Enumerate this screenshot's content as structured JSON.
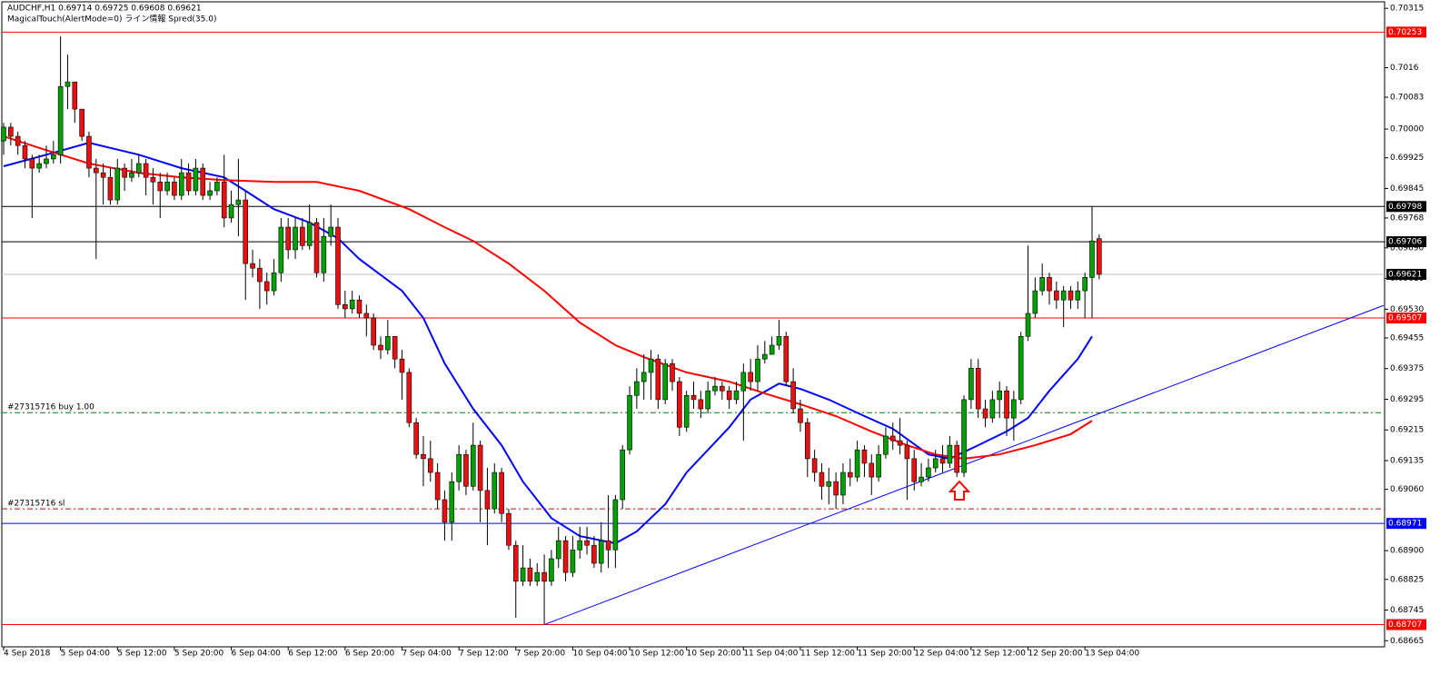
{
  "chart_data": {
    "type": "candlestick",
    "header": "AUDCHF,H1  0.69714 0.69725 0.69608 0.69621",
    "indicator": "MagicalTouch(AlertMode=0) ライン情報 Spred(35.0)",
    "ylim": [
      0.68649,
      0.70332
    ],
    "yticks": [
      0.70315,
      0.7016,
      0.70083,
      {
        "value": 0.7,
        "label": "0.70000"
      },
      0.69925,
      0.69845,
      0.69768,
      {
        "value": 0.6969,
        "label": "0.69690"
      },
      {
        "value": 0.6961,
        "label": "0.69610"
      },
      {
        "value": 0.6953,
        "label": "0.69530"
      },
      0.69455,
      0.69375,
      0.69295,
      0.69215,
      0.69135,
      {
        "value": 0.6906,
        "label": "0.69060"
      },
      {
        "value": 0.689,
        "label": "0.68900"
      },
      0.68825,
      0.68745,
      0.68665
    ],
    "xticks": [
      {
        "value": 0,
        "label": "4 Sep 2018"
      },
      {
        "value": 8,
        "label": "5 Sep 04:00"
      },
      {
        "value": 16,
        "label": "5 Sep 12:00"
      },
      {
        "value": 24,
        "label": "5 Sep 20:00"
      },
      {
        "value": 32,
        "label": "6 Sep 04:00"
      },
      {
        "value": 40,
        "label": "6 Sep 12:00"
      },
      {
        "value": 48,
        "label": "6 Sep 20:00"
      },
      {
        "value": 56,
        "label": "7 Sep 04:00"
      },
      {
        "value": 64,
        "label": "7 Sep 12:00"
      },
      {
        "value": 72,
        "label": "7 Sep 20:00"
      },
      {
        "value": 80,
        "label": "10 Sep 04:00"
      },
      {
        "value": 88,
        "label": "10 Sep 12:00"
      },
      {
        "value": 96,
        "label": "10 Sep 20:00"
      },
      {
        "value": 104,
        "label": "11 Sep 04:00"
      },
      {
        "value": 112,
        "label": "11 Sep 12:00"
      },
      {
        "value": 120,
        "label": "11 Sep 20:00"
      },
      {
        "value": 128,
        "label": "12 Sep 04:00"
      },
      {
        "value": 136,
        "label": "12 Sep 12:00"
      },
      {
        "value": 144,
        "label": "12 Sep 20:00"
      },
      {
        "value": 152,
        "label": "13 Sep 04:00"
      }
    ],
    "up_color": "#00a000",
    "down_color": "#e81010",
    "candles": [
      [
        0.69969,
        0.70016,
        0.69933,
        0.70005
      ],
      [
        0.70005,
        0.70016,
        0.69957,
        0.69981
      ],
      [
        0.69981,
        0.69993,
        0.69933,
        0.69957
      ],
      [
        0.69957,
        0.69969,
        0.69898,
        0.69922
      ],
      [
        0.69922,
        0.69933,
        0.69768,
        0.69898
      ],
      [
        0.69898,
        0.69933,
        0.69886,
        0.6991
      ],
      [
        0.6991,
        0.69957,
        0.69898,
        0.69922
      ],
      [
        0.69922,
        0.69969,
        0.6991,
        0.69933
      ],
      [
        0.69933,
        0.70242,
        0.6991,
        0.70111
      ],
      [
        0.70111,
        0.70194,
        0.70052,
        0.70123
      ],
      [
        0.70123,
        0.70123,
        0.70016,
        0.70052
      ],
      [
        0.70052,
        0.70052,
        0.69969,
        0.69981
      ],
      [
        0.69981,
        0.69993,
        0.69874,
        0.69898
      ],
      [
        0.69898,
        0.69922,
        0.69661,
        0.69886
      ],
      [
        0.69886,
        0.6991,
        0.69803,
        0.69874
      ],
      [
        0.69874,
        0.69898,
        0.69803,
        0.69815
      ],
      [
        0.69815,
        0.69922,
        0.69803,
        0.69898
      ],
      [
        0.69898,
        0.6991,
        0.69839,
        0.69874
      ],
      [
        0.69874,
        0.69922,
        0.69862,
        0.69886
      ],
      [
        0.69886,
        0.69933,
        0.69874,
        0.6991
      ],
      [
        0.6991,
        0.69922,
        0.69827,
        0.69874
      ],
      [
        0.69874,
        0.69898,
        0.69803,
        0.69862
      ],
      [
        0.69862,
        0.69886,
        0.69768,
        0.69839
      ],
      [
        0.69839,
        0.69886,
        0.69827,
        0.69862
      ],
      [
        0.69862,
        0.69874,
        0.69815,
        0.69827
      ],
      [
        0.69827,
        0.69922,
        0.69815,
        0.69886
      ],
      [
        0.69886,
        0.6991,
        0.69827,
        0.69839
      ],
      [
        0.69839,
        0.69922,
        0.69827,
        0.69898
      ],
      [
        0.69898,
        0.6991,
        0.69815,
        0.69827
      ],
      [
        0.69827,
        0.69862,
        0.69815,
        0.69839
      ],
      [
        0.69839,
        0.69874,
        0.69827,
        0.69862
      ],
      [
        0.69862,
        0.69933,
        0.69744,
        0.69768
      ],
      [
        0.69768,
        0.69839,
        0.69756,
        0.69803
      ],
      [
        0.69803,
        0.69922,
        0.6972,
        0.69815
      ],
      [
        0.69815,
        0.69839,
        0.69554,
        0.69649
      ],
      [
        0.69649,
        0.69685,
        0.69613,
        0.69637
      ],
      [
        0.69637,
        0.69661,
        0.69531,
        0.69602
      ],
      [
        0.69602,
        0.69625,
        0.69542,
        0.69578
      ],
      [
        0.69578,
        0.69661,
        0.69566,
        0.69625
      ],
      [
        0.69625,
        0.69768,
        0.69602,
        0.69744
      ],
      [
        0.69744,
        0.69768,
        0.69661,
        0.69685
      ],
      [
        0.69685,
        0.69768,
        0.69661,
        0.69744
      ],
      [
        0.69744,
        0.69768,
        0.69685,
        0.69696
      ],
      [
        0.69696,
        0.69803,
        0.69685,
        0.69756
      ],
      [
        0.69756,
        0.69768,
        0.69613,
        0.69625
      ],
      [
        0.69625,
        0.69768,
        0.69602,
        0.6972
      ],
      [
        0.6972,
        0.69803,
        0.69696,
        0.69744
      ],
      [
        0.69744,
        0.69768,
        0.69531,
        0.69542
      ],
      [
        0.69542,
        0.69578,
        0.69507,
        0.69531
      ],
      [
        0.69531,
        0.69578,
        0.69519,
        0.69554
      ],
      [
        0.69554,
        0.69566,
        0.69507,
        0.69519
      ],
      [
        0.69519,
        0.69542,
        0.69459,
        0.69507
      ],
      [
        0.69507,
        0.69519,
        0.69424,
        0.69436
      ],
      [
        0.69436,
        0.69459,
        0.694,
        0.69424
      ],
      [
        0.69424,
        0.69502,
        0.69412,
        0.69459
      ],
      [
        0.69459,
        0.69459,
        0.69376,
        0.694
      ],
      [
        0.694,
        0.69424,
        0.69294,
        0.69365
      ],
      [
        0.69365,
        0.69376,
        0.69222,
        0.69234
      ],
      [
        0.69234,
        0.69246,
        0.6914,
        0.69151
      ],
      [
        0.69151,
        0.69199,
        0.69068,
        0.6914
      ],
      [
        0.6914,
        0.69187,
        0.6908,
        0.69104
      ],
      [
        0.69104,
        0.69128,
        0.69009,
        0.69033
      ],
      [
        0.69033,
        0.69057,
        0.68926,
        0.68974
      ],
      [
        0.68974,
        0.69104,
        0.68926,
        0.6908
      ],
      [
        0.6908,
        0.69175,
        0.69057,
        0.69151
      ],
      [
        0.69151,
        0.69163,
        0.69045,
        0.69068
      ],
      [
        0.69068,
        0.69234,
        0.69057,
        0.69175
      ],
      [
        0.69175,
        0.69187,
        0.68974,
        0.69057
      ],
      [
        0.69057,
        0.69116,
        0.68914,
        0.69009
      ],
      [
        0.69009,
        0.69128,
        0.68997,
        0.69104
      ],
      [
        0.69104,
        0.69116,
        0.68974,
        0.68997
      ],
      [
        0.68997,
        0.69009,
        0.68902,
        0.68914
      ],
      [
        0.68914,
        0.68926,
        0.68725,
        0.6882
      ],
      [
        0.6882,
        0.68914,
        0.68808,
        0.68855
      ],
      [
        0.68855,
        0.68879,
        0.68808,
        0.6882
      ],
      [
        0.6882,
        0.68867,
        0.68808,
        0.68843
      ],
      [
        0.68843,
        0.6889,
        0.68707,
        0.6882
      ],
      [
        0.6882,
        0.68902,
        0.68808,
        0.68879
      ],
      [
        0.68879,
        0.68962,
        0.68855,
        0.68926
      ],
      [
        0.68926,
        0.68938,
        0.6882,
        0.68843
      ],
      [
        0.68843,
        0.68938,
        0.68831,
        0.68902
      ],
      [
        0.68902,
        0.68962,
        0.68879,
        0.68926
      ],
      [
        0.68926,
        0.68962,
        0.6889,
        0.68914
      ],
      [
        0.68914,
        0.68938,
        0.68855,
        0.68867
      ],
      [
        0.68867,
        0.68974,
        0.68843,
        0.68926
      ],
      [
        0.68926,
        0.69045,
        0.68855,
        0.68902
      ],
      [
        0.68902,
        0.69045,
        0.68855,
        0.69033
      ],
      [
        0.69033,
        0.69175,
        0.69009,
        0.69163
      ],
      [
        0.69163,
        0.69329,
        0.69151,
        0.69305
      ],
      [
        0.69305,
        0.69376,
        0.6927,
        0.69341
      ],
      [
        0.69341,
        0.69412,
        0.69294,
        0.69365
      ],
      [
        0.69365,
        0.69424,
        0.69294,
        0.694
      ],
      [
        0.694,
        0.69412,
        0.6927,
        0.69294
      ],
      [
        0.69294,
        0.694,
        0.69282,
        0.69388
      ],
      [
        0.69388,
        0.694,
        0.69317,
        0.69341
      ],
      [
        0.69341,
        0.69353,
        0.69199,
        0.69222
      ],
      [
        0.69222,
        0.69317,
        0.6921,
        0.69305
      ],
      [
        0.69305,
        0.69341,
        0.6927,
        0.69294
      ],
      [
        0.69294,
        0.69317,
        0.69246,
        0.6927
      ],
      [
        0.6927,
        0.69341,
        0.69258,
        0.69317
      ],
      [
        0.69317,
        0.69353,
        0.69305,
        0.69329
      ],
      [
        0.69329,
        0.69341,
        0.69294,
        0.69317
      ],
      [
        0.69317,
        0.69329,
        0.6927,
        0.69294
      ],
      [
        0.69294,
        0.69341,
        0.69282,
        0.69317
      ],
      [
        0.69317,
        0.69388,
        0.69187,
        0.69365
      ],
      [
        0.69365,
        0.694,
        0.69317,
        0.69341
      ],
      [
        0.69341,
        0.69436,
        0.69317,
        0.694
      ],
      [
        0.694,
        0.69447,
        0.69388,
        0.69412
      ],
      [
        0.69412,
        0.69459,
        0.69412,
        0.69436
      ],
      [
        0.69436,
        0.69502,
        0.69424,
        0.69459
      ],
      [
        0.69459,
        0.69471,
        0.69329,
        0.69341
      ],
      [
        0.69341,
        0.69376,
        0.69258,
        0.6927
      ],
      [
        0.6927,
        0.69294,
        0.6921,
        0.69234
      ],
      [
        0.69234,
        0.69246,
        0.69092,
        0.6914
      ],
      [
        0.6914,
        0.69163,
        0.6908,
        0.69104
      ],
      [
        0.69104,
        0.69128,
        0.69033,
        0.69068
      ],
      [
        0.69068,
        0.69116,
        0.69021,
        0.6908
      ],
      [
        0.6908,
        0.69104,
        0.69009,
        0.69045
      ],
      [
        0.69045,
        0.69128,
        0.69021,
        0.69104
      ],
      [
        0.69104,
        0.6914,
        0.69068,
        0.69092
      ],
      [
        0.69092,
        0.69187,
        0.6908,
        0.69163
      ],
      [
        0.69163,
        0.69175,
        0.69092,
        0.69128
      ],
      [
        0.69128,
        0.69151,
        0.69045,
        0.69092
      ],
      [
        0.69092,
        0.69175,
        0.6908,
        0.69151
      ],
      [
        0.69151,
        0.69222,
        0.6914,
        0.69199
      ],
      [
        0.69199,
        0.69234,
        0.69163,
        0.69187
      ],
      [
        0.69187,
        0.69246,
        0.69151,
        0.69175
      ],
      [
        0.69175,
        0.69187,
        0.69033,
        0.6914
      ],
      [
        0.6914,
        0.69163,
        0.69057,
        0.6908
      ],
      [
        0.6908,
        0.69128,
        0.69068,
        0.69092
      ],
      [
        0.69092,
        0.6914,
        0.6908,
        0.69116
      ],
      [
        0.69116,
        0.69163,
        0.69104,
        0.6914
      ],
      [
        0.6914,
        0.69175,
        0.69104,
        0.69128
      ],
      [
        0.69128,
        0.69199,
        0.69116,
        0.69175
      ],
      [
        0.69175,
        0.69187,
        0.69092,
        0.69104
      ],
      [
        0.69104,
        0.69305,
        0.69092,
        0.69294
      ],
      [
        0.69294,
        0.694,
        0.6927,
        0.69376
      ],
      [
        0.69376,
        0.694,
        0.69246,
        0.6927
      ],
      [
        0.6927,
        0.69294,
        0.69222,
        0.69246
      ],
      [
        0.69246,
        0.69317,
        0.69234,
        0.69294
      ],
      [
        0.69294,
        0.69341,
        0.69246,
        0.69317
      ],
      [
        0.69317,
        0.69329,
        0.69199,
        0.69246
      ],
      [
        0.69246,
        0.69317,
        0.69187,
        0.69294
      ],
      [
        0.69294,
        0.69471,
        0.69282,
        0.69459
      ],
      [
        0.69459,
        0.69696,
        0.69447,
        0.69519
      ],
      [
        0.69519,
        0.69613,
        0.69507,
        0.69578
      ],
      [
        0.69578,
        0.69649,
        0.69566,
        0.69613
      ],
      [
        0.69613,
        0.69625,
        0.69542,
        0.69578
      ],
      [
        0.69578,
        0.69602,
        0.69531,
        0.69554
      ],
      [
        0.69554,
        0.6959,
        0.69483,
        0.69578
      ],
      [
        0.69578,
        0.6959,
        0.69531,
        0.69554
      ],
      [
        0.69554,
        0.69602,
        0.69531,
        0.69578
      ],
      [
        0.69578,
        0.69625,
        0.69507,
        0.69613
      ],
      [
        0.69613,
        0.69798,
        0.69507,
        0.69708
      ],
      [
        0.69714,
        0.69725,
        0.69608,
        0.69621
      ]
    ],
    "lines": [
      {
        "color": "#0000ff",
        "x": [
          0,
          6,
          12,
          19,
          25,
          31,
          34,
          38,
          43,
          47,
          50,
          56,
          59,
          62,
          66,
          70,
          73,
          77,
          81,
          86,
          89,
          93,
          96,
          102,
          105,
          109,
          112,
          116,
          121,
          125,
          130,
          133,
          137,
          141,
          144,
          147,
          151,
          153
        ],
        "values": [
          0.69903,
          0.69933,
          0.69964,
          0.69933,
          0.69898,
          0.69874,
          0.69839,
          0.69791,
          0.69756,
          0.69715,
          0.69661,
          0.69578,
          0.69507,
          0.69388,
          0.6927,
          0.69175,
          0.6908,
          0.68985,
          0.68938,
          0.68919,
          0.6895,
          0.69021,
          0.69104,
          0.69222,
          0.69294,
          0.69336,
          0.69322,
          0.69294,
          0.69251,
          0.69218,
          0.69151,
          0.6914,
          0.69175,
          0.69211,
          0.69246,
          0.69317,
          0.694,
          0.69459
        ]
      },
      {
        "color": "#ff0000",
        "x": [
          0,
          6,
          12,
          19,
          25,
          31,
          38,
          44,
          50,
          57,
          62,
          66,
          71,
          76,
          81,
          86,
          90,
          96,
          102,
          107,
          112,
          117,
          122,
          127,
          131,
          135,
          140,
          145,
          150,
          153
        ],
        "values": [
          0.69981,
          0.69945,
          0.6991,
          0.69886,
          0.69874,
          0.69867,
          0.69862,
          0.69862,
          0.69839,
          0.69791,
          0.69744,
          0.69708,
          0.69649,
          0.69578,
          0.69495,
          0.69436,
          0.69405,
          0.69365,
          0.69341,
          0.6931,
          0.69282,
          0.69251,
          0.69211,
          0.69175,
          0.69151,
          0.6914,
          0.69151,
          0.69175,
          0.69204,
          0.69239
        ]
      }
    ],
    "hlines": [
      {
        "value": 0.70253,
        "color": "#ff0000"
      },
      {
        "value": 0.69798,
        "color": "#000000"
      },
      {
        "value": 0.69706,
        "color": "#000000"
      },
      {
        "value": 0.69621,
        "color": "#c0c0c0"
      },
      {
        "value": 0.69507,
        "color": "#ff0000"
      },
      {
        "value": 0.68971,
        "color": "#0000ff"
      },
      {
        "value": 0.68707,
        "color": "#ff0000"
      }
    ],
    "orders": [
      {
        "label": "#27315716 buy 1.00",
        "value": 0.6926,
        "color": "#008000"
      },
      {
        "label": "#27315716 sl",
        "value": 0.69009,
        "color": "#d00000"
      }
    ],
    "trendline": {
      "x": [
        76,
        194
      ],
      "values": [
        0.68707,
        0.6954
      ],
      "color": "#0000ff"
    }
  }
}
